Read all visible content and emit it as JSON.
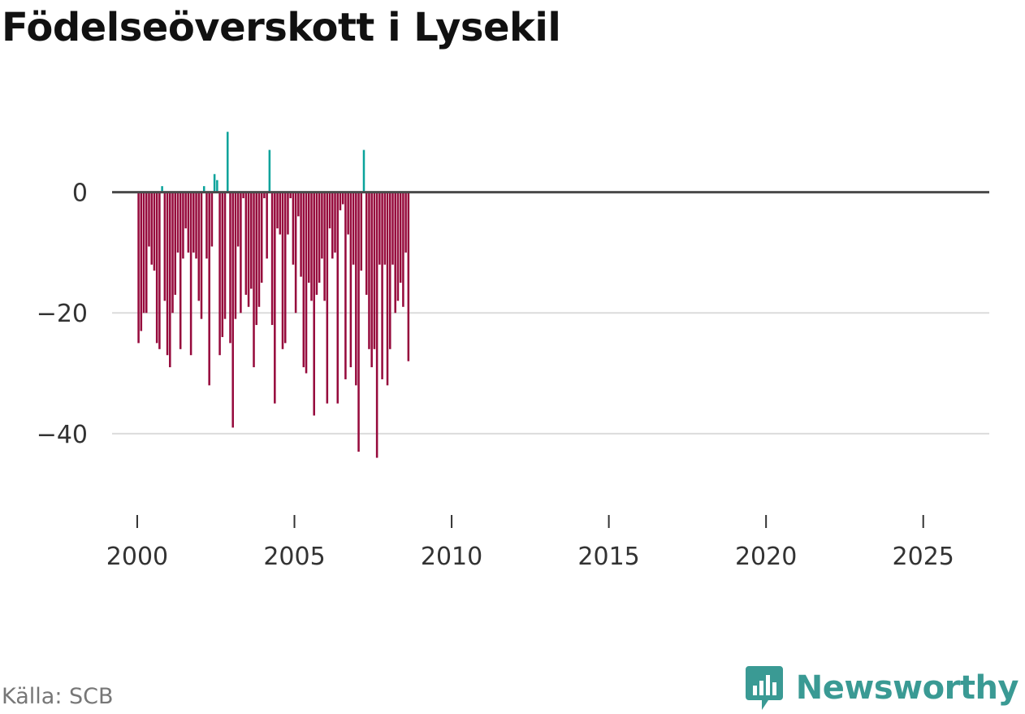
{
  "chart_data": {
    "type": "bar",
    "title": "Födelseöverskott i Lysekil",
    "xlabel": "",
    "ylabel": "",
    "x_range": [
      1999.2,
      2027.1
    ],
    "ylim": [
      -52,
      13
    ],
    "y_ticks": [
      0,
      -20,
      -40
    ],
    "y_tick_labels": [
      "0",
      "−20",
      "−40"
    ],
    "x_ticks": [
      2000,
      2005,
      2010,
      2015,
      2020,
      2025
    ],
    "x_tick_labels": [
      "2000",
      "2005",
      "2010",
      "2015",
      "2020",
      "2025"
    ],
    "positive_color": "#0aa39b",
    "negative_color": "#960a3c",
    "series": [
      {
        "name": "Födelseöverskott",
        "start": 2000,
        "frequency": "monthly",
        "values": [
          -25,
          -23,
          -20,
          -20,
          -9,
          -12,
          -13,
          -25,
          -26,
          1,
          -18,
          -27,
          -29,
          -20,
          -17,
          -10,
          -26,
          -11,
          -6,
          -10,
          -27,
          -10,
          -11,
          -18,
          -21,
          1,
          -11,
          -32,
          -9,
          3,
          2,
          -27,
          -24,
          -21,
          10,
          -25,
          -39,
          -21,
          -9,
          -20,
          -1,
          -17,
          -19,
          -16,
          -29,
          -22,
          -19,
          -15,
          -1,
          -11,
          7,
          -22,
          -35,
          -6,
          -7,
          -26,
          -25,
          -7,
          -1,
          -12,
          -20,
          -4,
          -14,
          -29,
          -30,
          -15,
          -18,
          -37,
          -17,
          -15,
          -11,
          -18,
          -35,
          -6,
          -11,
          -10,
          -35,
          -3,
          -2,
          -31,
          -7,
          -29,
          -12,
          -32,
          -43,
          -13,
          7,
          -17,
          -26,
          -29,
          -26,
          -44,
          -12,
          -31,
          -12,
          -32,
          -26,
          -12,
          -20,
          -18,
          -15,
          -19,
          -10,
          -28
        ]
      }
    ]
  },
  "source": "Källa: SCB",
  "brand": "Newsworthy"
}
